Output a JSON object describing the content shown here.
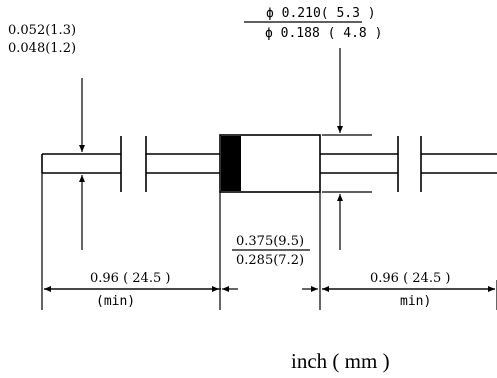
{
  "lead_diameter": {
    "max": "0.052(1.3)",
    "min": "0.048(1.2)"
  },
  "body_diameter": {
    "max": "ϕ 0.210( 5.3 )",
    "min": "ϕ 0.188 ( 4.8 )"
  },
  "body_length": {
    "max": "0.375(9.5)",
    "min": "0.285(7.2)"
  },
  "lead_length_left": {
    "value": "0.96 ( 24.5 )",
    "note": "(min)"
  },
  "lead_length_right": {
    "value": "0.96 ( 24.5 )",
    "note": "min)"
  },
  "units": "inch ( mm )",
  "colors": {
    "line": "#000000",
    "cathode_band": "#000000",
    "background": "#ffffff"
  }
}
